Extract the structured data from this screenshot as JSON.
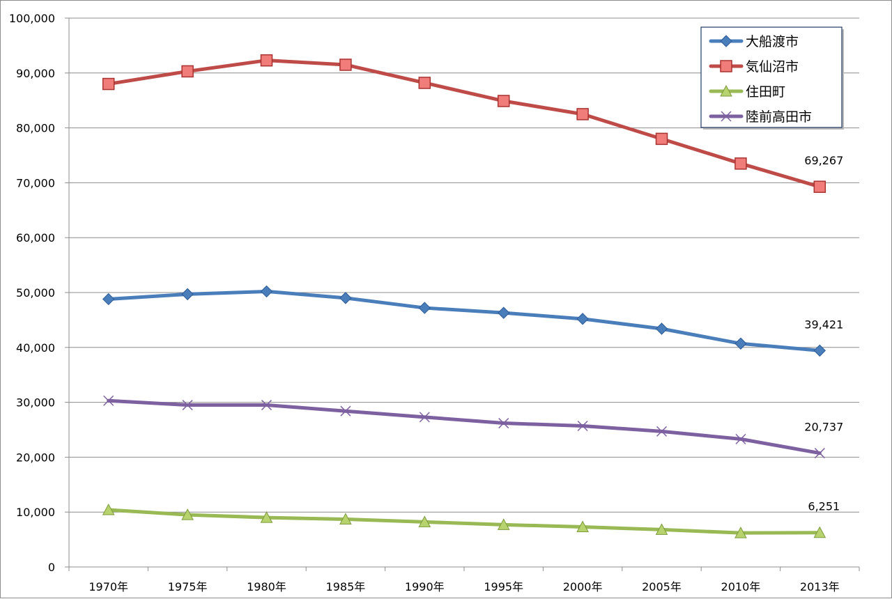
{
  "chart_data": {
    "type": "line",
    "title": "",
    "xlabel": "",
    "ylabel": "",
    "ylim": [
      0,
      100000
    ],
    "yticks": [
      0,
      10000,
      20000,
      30000,
      40000,
      50000,
      60000,
      70000,
      80000,
      90000,
      100000
    ],
    "ytick_labels": [
      "0",
      "10,000",
      "20,000",
      "30,000",
      "40,000",
      "50,000",
      "60,000",
      "70,000",
      "80,000",
      "90,000",
      "100,000"
    ],
    "categories": [
      "1970年",
      "1975年",
      "1980年",
      "1985年",
      "1990年",
      "1995年",
      "2000年",
      "2005年",
      "2010年",
      "2013年"
    ],
    "grid": true,
    "legend_position": "top-right",
    "series": [
      {
        "name": "大船渡市",
        "color": "#4a7ebb",
        "marker": "diamond",
        "values": [
          48800,
          49700,
          50200,
          49000,
          47200,
          46300,
          45200,
          43400,
          40700,
          39421
        ],
        "last_label": "39,421"
      },
      {
        "name": "気仙沼市",
        "color": "#be4b48",
        "marker": "square",
        "values": [
          88000,
          90300,
          92300,
          91500,
          88200,
          84900,
          82500,
          78000,
          73500,
          69267
        ],
        "last_label": "69,267"
      },
      {
        "name": "住田町",
        "color": "#98b954",
        "marker": "triangle",
        "values": [
          10400,
          9500,
          9000,
          8700,
          8200,
          7700,
          7300,
          6800,
          6200,
          6251
        ],
        "last_label": "6,251"
      },
      {
        "name": "陸前高田市",
        "color": "#7d60a0",
        "marker": "x",
        "values": [
          30300,
          29500,
          29500,
          28400,
          27300,
          26200,
          25700,
          24700,
          23300,
          20737
        ],
        "last_label": "20,737"
      }
    ]
  }
}
